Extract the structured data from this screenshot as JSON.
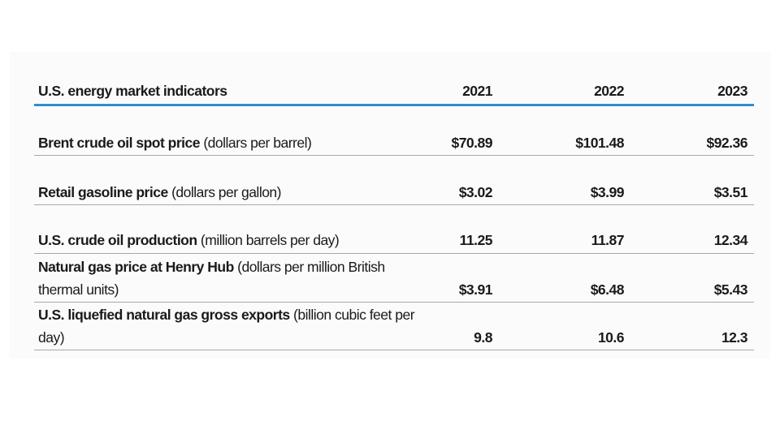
{
  "table": {
    "header": {
      "title": "U.S. energy market indicators",
      "years": [
        "2021",
        "2022",
        "2023"
      ]
    },
    "rows": [
      {
        "bold_label": "Brent crude oil spot price",
        "unit": " (dollars per barrel)",
        "values": [
          "$70.89",
          "$101.48",
          "$92.36"
        ]
      },
      {
        "bold_label": "Retail gasoline price",
        "unit": " (dollars per gallon)",
        "values": [
          "$3.02",
          "$3.99",
          "$3.51"
        ]
      },
      {
        "bold_label": "U.S. crude oil production",
        "unit": "  (million barrels per day)",
        "values": [
          "11.25",
          "11.87",
          "12.34"
        ]
      },
      {
        "bold_label": "Natural gas price at Henry Hub",
        "unit": " (dollars per million British thermal units)",
        "values": [
          "$3.91",
          "$6.48",
          "$5.43"
        ]
      },
      {
        "bold_label": "U.S. liquefied natural gas gross exports",
        "unit": " (billion cubic feet per day)",
        "values": [
          "9.8",
          "10.6",
          "12.3"
        ]
      }
    ]
  }
}
